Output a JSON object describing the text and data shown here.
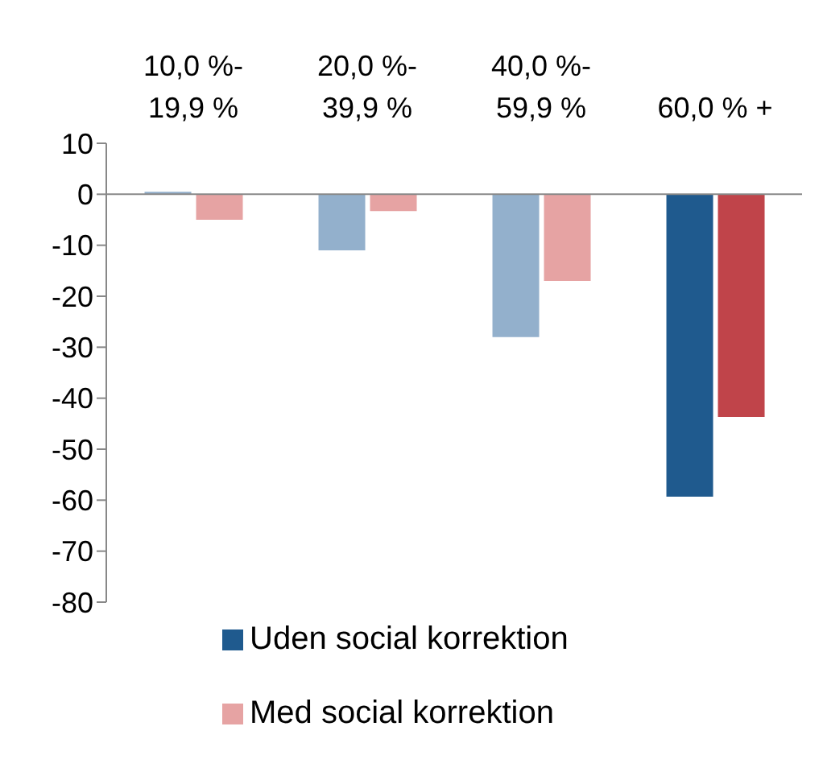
{
  "chart_data": {
    "type": "bar",
    "categories": [
      "10,0 %-19,9 %",
      "20,0 %-39,9 %",
      "40,0 %-59,9 %",
      "60,0 % +"
    ],
    "series": [
      {
        "name": "Uden social korrektion",
        "color": "#1f5a8e",
        "colors": [
          "#93b0cc",
          "#93b0cc",
          "#93b0cc",
          "#1f5a8e"
        ],
        "values": [
          0.5,
          -11,
          -28,
          -59.3
        ]
      },
      {
        "name": "Med social korrektion",
        "color": "#e6a3a3",
        "colors": [
          "#e6a3a3",
          "#e6a3a3",
          "#e6a3a3",
          "#c0444a"
        ],
        "values": [
          -5,
          -3.3,
          -17,
          -43.7
        ]
      }
    ],
    "ylim": [
      -80,
      10
    ],
    "yticks": [
      10,
      0,
      -10,
      -20,
      -30,
      -40,
      -50,
      -60,
      -70,
      -80
    ],
    "legend": "bottom"
  }
}
